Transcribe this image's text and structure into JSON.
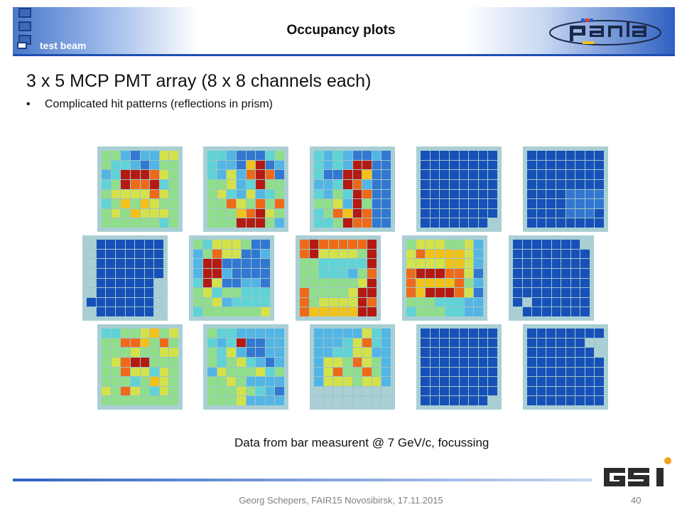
{
  "header": {
    "title": "Occupancy plots",
    "section": "test beam"
  },
  "content": {
    "heading": "3 x 5 MCP PMT array (8 x 8 channels each)",
    "bullet": "Complicated hit patterns (reflections in prism)",
    "bullet_marker": "•",
    "caption": "Data from bar measurent @ 7 GeV/c, focussing"
  },
  "footer": {
    "text": "Georg Schepers, FAIR15 Novosibirsk, 17.11.2015",
    "page": "40"
  },
  "colors": {
    "0": "#0b2f8a",
    "1": "#1750b8",
    "2": "#3277d1",
    "3": "#52b5e6",
    "4": "#5fd3d6",
    "5": "#90de8a",
    "6": "#d4e24a",
    "7": "#f2c218",
    "8": "#ef6a18",
    "9": "#b51a12",
    "e": "#a9cfd4"
  },
  "pmt_rows": [
    [
      [
        "55323366",
        "54432355",
        "34999865",
        "45988945",
        "56666865",
        "45757655",
        "56576665",
        "55555545"
      ],
      [
        "44322245",
        "43327923",
        "43638982",
        "55634955",
        "56436345",
        "55865858",
        "55578965",
        "55599953"
      ],
      [
        "43432232",
        "43439922",
        "42299722",
        "33498322",
        "43549822",
        "55639522",
        "45879822",
        "44598822"
      ],
      [
        "11111111",
        "11111111",
        "11111111",
        "11111111",
        "11111111",
        "11111111",
        "11111111",
        "1111111e"
      ],
      [
        "11111111",
        "11111111",
        "11111111",
        "11111111",
        "11112222",
        "11112222",
        "11112221",
        "11111111"
      ]
    ],
    [
      [
        "e1111111",
        "e1111111",
        "e1111111",
        "e1111111",
        "e111111e",
        "e111111e",
        "1111111e",
        "e111111e"
      ],
      [
        "54666522",
        "35866223",
        "39922222",
        "39932222",
        "49622332",
        "56455444",
        "55634444",
        "45555556"
      ],
      [
        "89888889",
        "89666659",
        "55444449",
        "55444358",
        "55555569",
        "85555699",
        "85666698",
        "87777799"
      ],
      [
        "56665563",
        "68777763",
        "66667763",
        "89998862",
        "87777853",
        "87999862",
        "55544433",
        "45554433"
      ],
      [
        "1111111e",
        "11111111",
        "11111111",
        "11111111",
        "11111111",
        "11111111",
        "1e111111",
        "e1111111"
      ]
    ],
    [
      [
        "44556756",
        "55887585",
        "55565566",
        "56899555",
        "55866465",
        "55545765",
        "65865465",
        "55555555"
      ],
      [
        "54433333",
        "43492233",
        "54632233",
        "54564323",
        "36555645",
        "55653333",
        "55565432",
        "55563333"
      ],
      [
        "33333643",
        "33346843",
        "33446633",
        "36658653",
        "36855853",
        "36665663",
        "eeeeeeee",
        "eeeeeeee"
      ],
      [
        "11111111",
        "11111111",
        "11111111",
        "11111111",
        "11111111",
        "11111111",
        "11111111",
        "1111111e"
      ],
      [
        "11111111",
        "111111ee",
        "1111111e",
        "11111111",
        "11111111",
        "11111111",
        "11111111",
        "11111111"
      ]
    ]
  ]
}
